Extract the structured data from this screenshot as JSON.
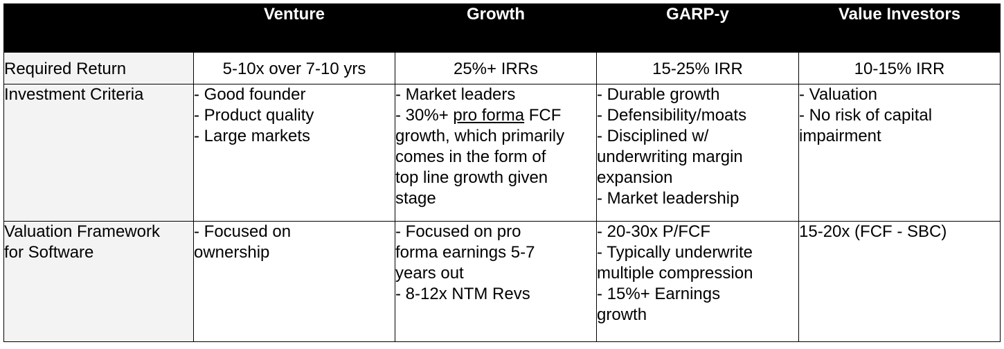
{
  "header": {
    "corner": "",
    "columns": [
      "Venture",
      "Growth",
      "GARP-y",
      "Value Investors"
    ]
  },
  "rows": {
    "required_return": {
      "label": "Required Return",
      "venture": "5-10x over 7-10 yrs",
      "growth": "25%+ IRRs",
      "garp": "15-25% IRR",
      "value": "10-15% IRR"
    },
    "investment_criteria": {
      "label": "Investment Criteria",
      "venture": [
        "- Good founder",
        "- Product quality",
        "- Large markets"
      ],
      "growth": {
        "line1": "- Market leaders",
        "line2_pre": "- 30%+ ",
        "line2_underlined": "pro forma",
        "line2_post": " FCF",
        "line3": "growth, which primarily",
        "line4": "comes in the form of",
        "line5": "top line growth given",
        "line6": "stage"
      },
      "garp": [
        "- Durable growth",
        "- Defensibility/moats",
        "- Disciplined w/",
        "underwriting margin",
        "expansion",
        "- Market leadership"
      ],
      "value": [
        "- Valuation",
        "- No risk of capital",
        "impairment"
      ]
    },
    "valuation_framework": {
      "label_line1": "Valuation Framework",
      "label_line2": "for Software",
      "venture": [
        "- Focused on",
        "ownership"
      ],
      "growth": [
        "- Focused on pro",
        "forma earnings 5-7",
        "years out",
        "- 8-12x NTM Revs"
      ],
      "garp": [
        "- 20-30x P/FCF",
        "- Typically underwrite",
        "multiple compression",
        "- 15%+ Earnings",
        "growth"
      ],
      "value": "15-20x (FCF - SBC)"
    }
  },
  "colors": {
    "header_bg": "#000000",
    "header_text": "#ffffff",
    "rowhead_bg": "#f3f3f3",
    "border": "#000000"
  }
}
